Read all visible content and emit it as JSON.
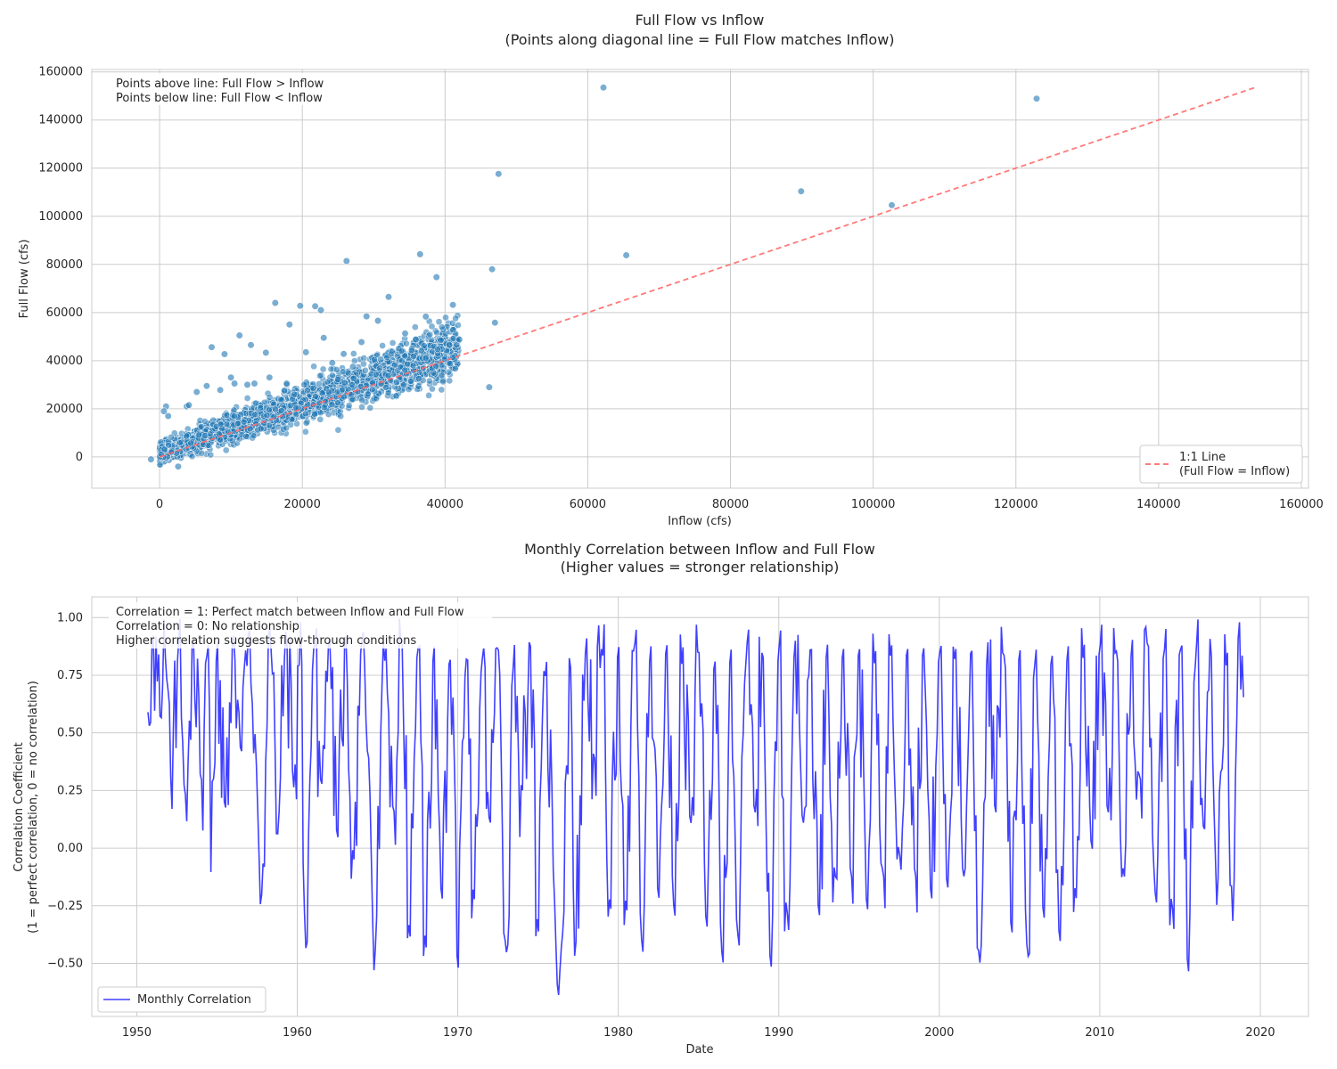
{
  "chart_data": [
    {
      "type": "scatter",
      "title": "Full Flow vs Inflow",
      "subtitle": "(Points along diagonal line = Full Flow matches Inflow)",
      "xlabel": "Inflow (cfs)",
      "ylabel": "Full Flow (cfs)",
      "xlim": [
        -9500,
        161000
      ],
      "ylim": [
        -13000,
        161000
      ],
      "xticks": [
        0,
        20000,
        40000,
        60000,
        80000,
        100000,
        120000,
        140000,
        160000
      ],
      "yticks": [
        0,
        20000,
        40000,
        60000,
        80000,
        100000,
        120000,
        140000,
        160000
      ],
      "grid": true,
      "legend_position": "lower-right",
      "legend": [
        {
          "label": "1:1 Line\n(Full Flow = Inflow)",
          "style": "dashed",
          "color": "#ff6b6b"
        }
      ],
      "annotations": [
        "Points above line: Full Flow > Inflow",
        "Points below line: Full Flow < Inflow"
      ],
      "point_color": "#1f77b4",
      "reference_line": {
        "x": [
          0,
          153500
        ],
        "y": [
          0,
          153500
        ]
      },
      "points": {
        "x": [
          62200,
          122900,
          47500,
          89900,
          102600,
          26200,
          36500,
          65400,
          46600,
          38800,
          16200,
          19700,
          21800,
          22600,
          32100,
          29000,
          41100,
          30600,
          18200,
          47000,
          23000,
          37300,
          28300,
          14900,
          20500,
          11200,
          12800,
          7300,
          9100,
          25800,
          24200,
          35900,
          34400,
          46200,
          3800,
          900,
          1200,
          600,
          -1200,
          2600,
          10500,
          13300,
          33200,
          35200,
          39400,
          42000,
          40600,
          31000,
          27100,
          12300,
          15400,
          17800,
          8500,
          5200,
          4100,
          6600,
          10000
        ],
        "y": [
          153500,
          148900,
          117600,
          110400,
          104600,
          81400,
          84200,
          83800,
          78000,
          74700,
          64000,
          62800,
          62600,
          61000,
          66500,
          58400,
          63200,
          56600,
          55000,
          55800,
          49500,
          58300,
          47700,
          43300,
          43500,
          50500,
          46500,
          45600,
          42700,
          42800,
          39100,
          48800,
          51300,
          29000,
          21000,
          21000,
          17000,
          19000,
          -1000,
          -4000,
          30500,
          30500,
          31000,
          31500,
          48500,
          48800,
          46500,
          40500,
          37500,
          30000,
          33000,
          30500,
          27800,
          27000,
          21500,
          29500,
          33000
        ]
      },
      "points_note": "Dense cloud of several thousand points between Inflow 0-42000 cfs along the 1:1 line"
    },
    {
      "type": "line",
      "title": "Monthly Correlation between Inflow and Full Flow",
      "subtitle": "(Higher values = stronger relationship)",
      "xlabel": "Date",
      "ylabel": "Correlation Coefficient\n(1 = perfect correlation, 0 = no correlation)",
      "xlim": [
        1947.2,
        2023.0
      ],
      "ylim": [
        -0.73,
        1.09
      ],
      "xticks": [
        1950,
        1960,
        1970,
        1980,
        1990,
        2000,
        2010,
        2020
      ],
      "yticks": [
        -0.5,
        -0.25,
        0.0,
        0.25,
        0.5,
        0.75,
        1.0
      ],
      "ytick_labels": [
        "−0.50",
        "−0.25",
        "0.00",
        "0.25",
        "0.50",
        "0.75",
        "1.00"
      ],
      "grid": true,
      "legend_position": "lower-left",
      "annotations": [
        "Correlation = 1: Perfect match between Inflow and Full Flow",
        "Correlation = 0: No relationship",
        "Higher correlation suggests flow-through conditions"
      ],
      "series": [
        {
          "name": "Monthly Correlation",
          "color": "#0000ff",
          "x_start": 1950.7,
          "x_end": 2019.7,
          "period": "monthly",
          "anchors_x": [
            1950.7,
            1951.0,
            1951.5,
            1951.8,
            1952.2,
            1952.6,
            1953.0,
            1953.5,
            1954.0,
            1954.5,
            1954.6,
            1955.0,
            1955.5,
            1956.0,
            1956.5,
            1957.0,
            1957.4,
            1957.8,
            1958.3,
            1958.8,
            1959.3,
            1959.8,
            1960.2,
            1960.5,
            1961.0,
            1961.5,
            1962.0,
            1962.5,
            1963.0,
            1963.5,
            1964.0,
            1964.5,
            1964.8,
            1965.5,
            1966.0,
            1966.5,
            1967.0,
            1967.5,
            1968.0,
            1968.5,
            1969.0,
            1969.5,
            1970.0,
            1970.5,
            1971.0,
            1971.5,
            1972.0,
            1972.5,
            1973.0,
            1973.5,
            1974.0,
            1974.5,
            1975.0,
            1975.5,
            1976.0,
            1976.4,
            1977.0,
            1977.3,
            1978.0,
            1978.5,
            1979.0,
            1979.5,
            1980.0,
            1980.5,
            1981.0,
            1981.5,
            1982.0,
            1982.5,
            1983.0,
            1983.5,
            1984.0,
            1984.5,
            1985.0,
            1985.5,
            1986.0,
            1986.5,
            1987.0,
            1987.5,
            1988.0,
            1988.5,
            1989.0,
            1989.5,
            1990.0,
            1990.5,
            1991.0,
            1991.5,
            1992.0,
            1992.5,
            1993.0,
            1993.5,
            1994.0,
            1994.5,
            1995.0,
            1995.5,
            1996.0,
            1996.5,
            1997.0,
            1997.5,
            1998.0,
            1998.5,
            1999.0,
            1999.5,
            2000.0,
            2000.5,
            2001.0,
            2001.5,
            2002.0,
            2002.5,
            2003.0,
            2003.5,
            2004.0,
            2004.5,
            2005.0,
            2005.5,
            2006.0,
            2006.5,
            2007.0,
            2007.5,
            2008.0,
            2008.5,
            2009.0,
            2009.5,
            2010.0,
            2010.5,
            2011.0,
            2011.5,
            2012.0,
            2012.5,
            2013.0,
            2013.5,
            2014.0,
            2014.5,
            2015.0,
            2015.5,
            2016.0,
            2016.5,
            2016.9,
            2017.3,
            2017.8,
            2018.3,
            2018.7,
            2019.0,
            2019.5,
            2019.7
          ],
          "anchors_y": [
            0.59,
            0.95,
            0.53,
            0.85,
            0.17,
            0.93,
            0.18,
            0.96,
            0.25,
            0.95,
            -0.15,
            0.95,
            0.12,
            0.96,
            0.38,
            0.99,
            0.45,
            -0.23,
            0.99,
            0.03,
            0.97,
            0.24,
            0.98,
            -0.53,
            0.92,
            0.23,
            0.97,
            -0.02,
            0.99,
            -0.12,
            0.95,
            0.33,
            -0.58,
            0.92,
            0.1,
            0.98,
            -0.48,
            0.97,
            -0.53,
            0.96,
            -0.3,
            0.92,
            -0.62,
            0.9,
            -0.3,
            0.88,
            0.05,
            0.96,
            -0.55,
            0.93,
            0.2,
            0.97,
            -0.45,
            0.88,
            -0.2,
            -0.56,
            0.95,
            -0.55,
            0.95,
            0.35,
            0.92,
            -0.35,
            0.96,
            -0.36,
            0.99,
            -0.55,
            0.96,
            -0.3,
            0.97,
            -0.38,
            0.93,
            0.05,
            0.94,
            -0.43,
            0.91,
            -0.6,
            0.96,
            -0.52,
            0.95,
            0.1,
            0.93,
            -0.62,
            0.97,
            -0.37,
            0.96,
            0.05,
            0.95,
            -0.38,
            0.96,
            -0.2,
            0.94,
            -0.2,
            0.95,
            -0.35,
            0.93,
            -0.2,
            0.95,
            -0.1,
            0.94,
            -0.2,
            0.95,
            -0.3,
            0.93,
            -0.25,
            0.94,
            -0.2,
            0.96,
            -0.6,
            0.95,
            0.1,
            0.93,
            -0.46,
            0.96,
            -0.57,
            0.95,
            -0.39,
            0.93,
            -0.5,
            0.96,
            -0.3,
            0.95,
            -0.07,
            0.94,
            0.1,
            0.93,
            -0.2,
            0.95,
            0.25,
            0.96,
            -0.32,
            0.95,
            -0.35,
            0.97,
            -0.64,
            0.95,
            0.0,
            0.99,
            -0.3,
            0.97,
            -0.36,
            0.98,
            0.59
          ]
        }
      ]
    }
  ]
}
